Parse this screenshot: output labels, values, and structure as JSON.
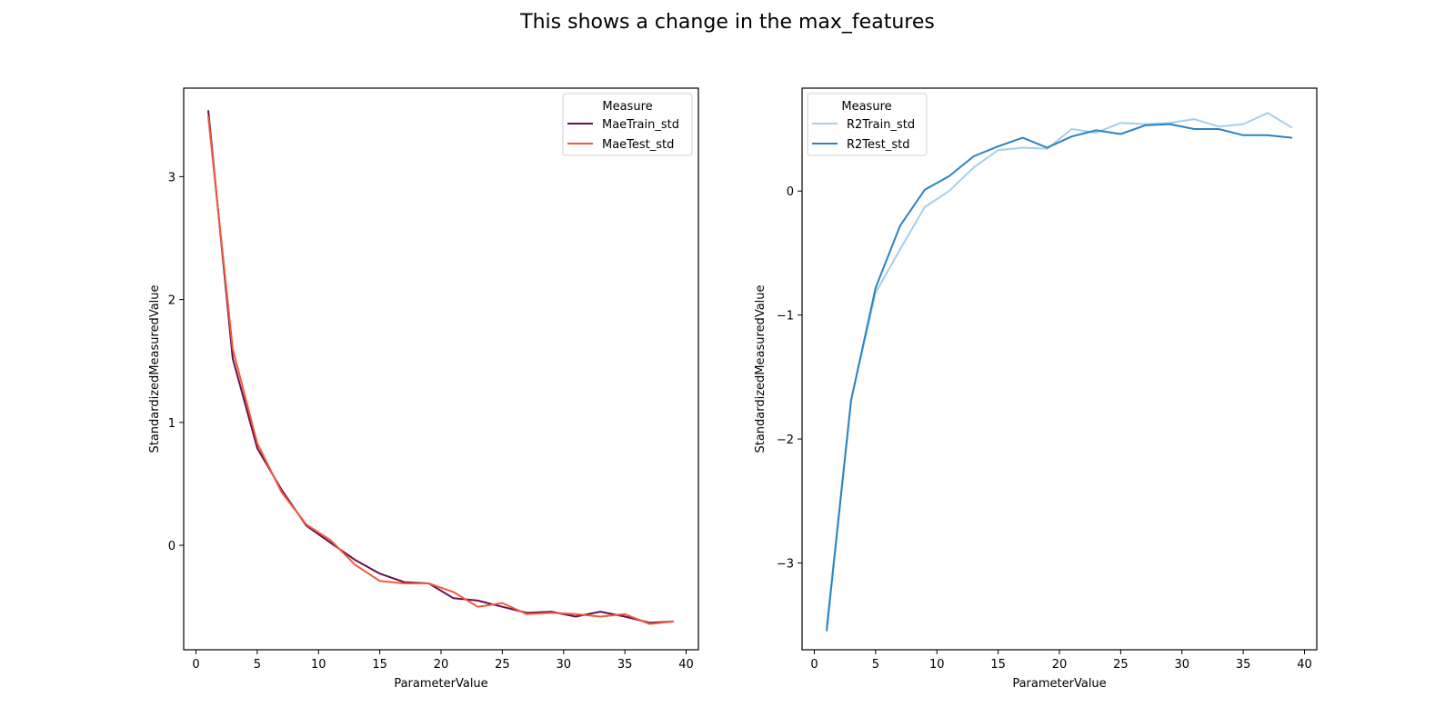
{
  "figure": {
    "title": "This shows a change in the max_features"
  },
  "chart_data": [
    {
      "type": "line",
      "xlabel": "ParameterValue",
      "ylabel": "StandardizedMeasuredValue",
      "xlim": [
        -1,
        41
      ],
      "ylim": [
        -0.85,
        3.72
      ],
      "xticks": [
        0,
        5,
        10,
        15,
        20,
        25,
        30,
        35,
        40
      ],
      "yticks": [
        0,
        1,
        2,
        3
      ],
      "grid": false,
      "legend": {
        "title": "Measure",
        "placement": "top-right"
      },
      "x": [
        1,
        3,
        5,
        7,
        9,
        11,
        13,
        15,
        17,
        19,
        21,
        23,
        25,
        27,
        29,
        31,
        33,
        35,
        37,
        39
      ],
      "series": [
        {
          "name": "MaeTrain_std",
          "color": "#6b0d4f",
          "values": [
            3.54,
            1.52,
            0.79,
            0.45,
            0.16,
            0.02,
            -0.12,
            -0.23,
            -0.3,
            -0.31,
            -0.43,
            -0.45,
            -0.5,
            -0.55,
            -0.54,
            -0.58,
            -0.54,
            -0.58,
            -0.63,
            -0.62
          ]
        },
        {
          "name": "MaeTest_std",
          "color": "#f05a3a",
          "values": [
            3.49,
            1.6,
            0.83,
            0.43,
            0.17,
            0.04,
            -0.16,
            -0.29,
            -0.31,
            -0.31,
            -0.38,
            -0.5,
            -0.47,
            -0.56,
            -0.55,
            -0.56,
            -0.58,
            -0.56,
            -0.64,
            -0.62
          ]
        }
      ]
    },
    {
      "type": "line",
      "xlabel": "ParameterValue",
      "ylabel": "StandardizedMeasuredValue",
      "xlim": [
        -1,
        41
      ],
      "ylim": [
        -3.7,
        0.83
      ],
      "xticks": [
        0,
        5,
        10,
        15,
        20,
        25,
        30,
        35,
        40
      ],
      "yticks": [
        -3,
        -2,
        -1,
        0
      ],
      "grid": false,
      "legend": {
        "title": "Measure",
        "placement": "top-left"
      },
      "x": [
        1,
        3,
        5,
        7,
        9,
        11,
        13,
        15,
        17,
        19,
        21,
        23,
        25,
        27,
        29,
        31,
        33,
        35,
        37,
        39
      ],
      "series": [
        {
          "name": "R2Train_std",
          "color": "#a6cfea",
          "values": [
            -3.52,
            -1.68,
            -0.82,
            -0.47,
            -0.13,
            0.0,
            0.19,
            0.33,
            0.35,
            0.34,
            0.5,
            0.47,
            0.55,
            0.54,
            0.55,
            0.58,
            0.52,
            0.54,
            0.63,
            0.51
          ]
        },
        {
          "name": "R2Test_std",
          "color": "#2b83c0",
          "values": [
            -3.55,
            -1.69,
            -0.78,
            -0.28,
            0.01,
            0.12,
            0.28,
            0.36,
            0.43,
            0.35,
            0.44,
            0.49,
            0.46,
            0.53,
            0.54,
            0.5,
            0.5,
            0.45,
            0.45,
            0.43
          ]
        }
      ]
    }
  ]
}
